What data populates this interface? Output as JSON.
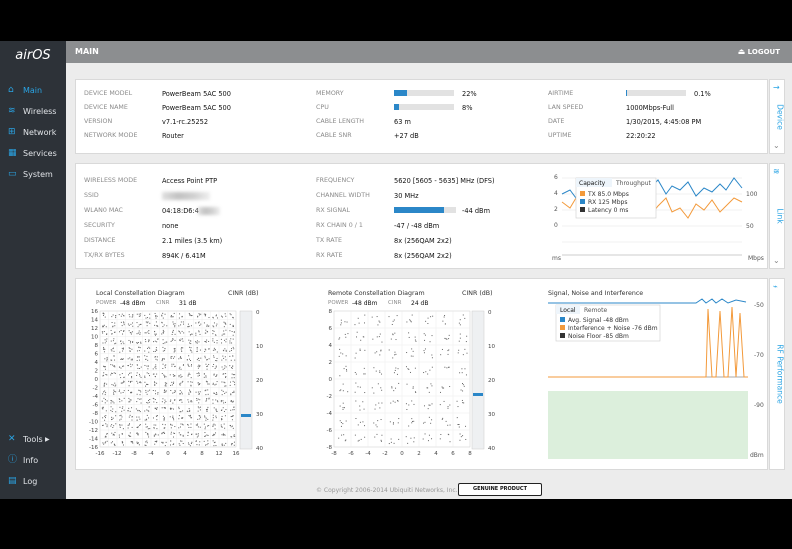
{
  "app": {
    "logo": "airOS",
    "page_title": "MAIN",
    "logout_label": "LOGOUT"
  },
  "sidebar": {
    "items": [
      {
        "label": "Main",
        "icon": "home-icon"
      },
      {
        "label": "Wireless",
        "icon": "wifi-icon"
      },
      {
        "label": "Network",
        "icon": "network-icon"
      },
      {
        "label": "Services",
        "icon": "services-icon"
      },
      {
        "label": "System",
        "icon": "system-icon"
      }
    ],
    "bottom": [
      {
        "label": "Tools",
        "icon": "tools-icon"
      },
      {
        "label": "Info",
        "icon": "info-icon"
      },
      {
        "label": "Log",
        "icon": "log-icon"
      }
    ]
  },
  "device": {
    "tab": "Device",
    "col1": [
      {
        "label": "DEVICE MODEL",
        "value": "PowerBeam 5AC 500"
      },
      {
        "label": "DEVICE NAME",
        "value": "PowerBeam 5AC 500"
      },
      {
        "label": "VERSION",
        "value": "v7.1-rc.25252"
      },
      {
        "label": "NETWORK MODE",
        "value": "Router"
      }
    ],
    "col2": [
      {
        "label": "MEMORY",
        "value": "22%",
        "fraction": 0.22
      },
      {
        "label": "CPU",
        "value": "8%",
        "fraction": 0.08
      },
      {
        "label": "CABLE LENGTH",
        "value": "63 m"
      },
      {
        "label": "CABLE SNR",
        "value": "+27 dB"
      }
    ],
    "col3": [
      {
        "label": "AIRTIME",
        "value": "0.1%",
        "fraction": 0.001
      },
      {
        "label": "LAN SPEED",
        "value": "1000Mbps-Full"
      },
      {
        "label": "DATE",
        "value": "1/30/2015, 4:45:08 PM"
      },
      {
        "label": "UPTIME",
        "value": "22:20:22"
      }
    ]
  },
  "link": {
    "tab": "Link",
    "col1": [
      {
        "label": "WIRELESS MODE",
        "value": "Access Point PTP"
      },
      {
        "label": "SSID",
        "value": ""
      },
      {
        "label": "WLAN0 MAC",
        "value": "04:18:D6:4"
      },
      {
        "label": "SECURITY",
        "value": "none"
      },
      {
        "label": "DISTANCE",
        "value": "2.1 miles (3.5 km)"
      },
      {
        "label": "TX/RX BYTES",
        "value": "894K / 6.41M"
      }
    ],
    "col2": [
      {
        "label": "FREQUENCY",
        "value": "5620 [5605 - 5635] MHz (DFS)"
      },
      {
        "label": "CHANNEL WIDTH",
        "value": "30 MHz"
      },
      {
        "label": "RX SIGNAL",
        "value": "-44 dBm",
        "fraction": 0.8
      },
      {
        "label": "RX CHAIN 0 / 1",
        "value": "-47 / -48 dBm"
      },
      {
        "label": "TX RATE",
        "value": "8x (256QAM 2x2)"
      },
      {
        "label": "RX RATE",
        "value": "8x (256QAM 2x2)"
      }
    ],
    "chart": {
      "tabs": [
        "Capacity",
        "Throughput"
      ],
      "legend": [
        "TX 85.0 Mbps",
        "RX 125 Mbps",
        "Latency 0 ms"
      ],
      "left_ticks": [
        "6",
        "4",
        "2",
        "0"
      ],
      "right_ticks": [
        "100",
        "50"
      ],
      "x_left": "ms",
      "x_right": "Mbps",
      "colors": {
        "tx": "#f39a3b",
        "rx": "#2b87c8",
        "latency": "#333333"
      }
    }
  },
  "rf": {
    "tab": "RF Performance",
    "local": {
      "title": "Local Constellation Diagram",
      "power_label": "POWER",
      "power": "-48 dBm",
      "cinr_label": "CINR",
      "cinr": "31 dB",
      "cinr_axis_title": "CINR (dB)",
      "cinr_ticks": [
        "0",
        "10",
        "20",
        "30",
        "40"
      ],
      "y_ticks": [
        "16",
        "14",
        "12",
        "10",
        "8",
        "6",
        "4",
        "2",
        "0",
        "-2",
        "-4",
        "-6",
        "-8",
        "-10",
        "-12",
        "-14",
        "-16"
      ],
      "x_ticks": [
        "-16",
        "-12",
        "-8",
        "-4",
        "0",
        "4",
        "8",
        "12",
        "16"
      ]
    },
    "remote": {
      "title": "Remote Constellation Diagram",
      "power_label": "POWER",
      "power": "-48 dBm",
      "cinr_label": "CINR",
      "cinr": "24 dB",
      "cinr_axis_title": "CINR (dB)",
      "cinr_ticks": [
        "0",
        "10",
        "20",
        "30",
        "40"
      ],
      "y_ticks": [
        "8",
        "6",
        "4",
        "2",
        "0",
        "-2",
        "-4",
        "-6",
        "-8"
      ],
      "x_ticks": [
        "-8",
        "-6",
        "-4",
        "-2",
        "0",
        "2",
        "4",
        "6",
        "8"
      ]
    },
    "signal": {
      "title": "Signal, Noise and Interference",
      "tabs": [
        "Local",
        "Remote"
      ],
      "legend": [
        "Avg. Signal -48 dBm",
        "Interference + Noise -76 dBm",
        "Noise Floor -85 dBm"
      ],
      "ticks": [
        "-50",
        "-70",
        "-90"
      ],
      "unit": "dBm",
      "colors": {
        "signal": "#2b87c8",
        "interference": "#f39a3b",
        "noise": "#333333",
        "floor_fill": "#dcefdc"
      }
    }
  },
  "footer": {
    "copyright": "© Copyright 2006-2014 Ubiquiti Networks, Inc.",
    "badge": "GENUINE PRODUCT"
  }
}
